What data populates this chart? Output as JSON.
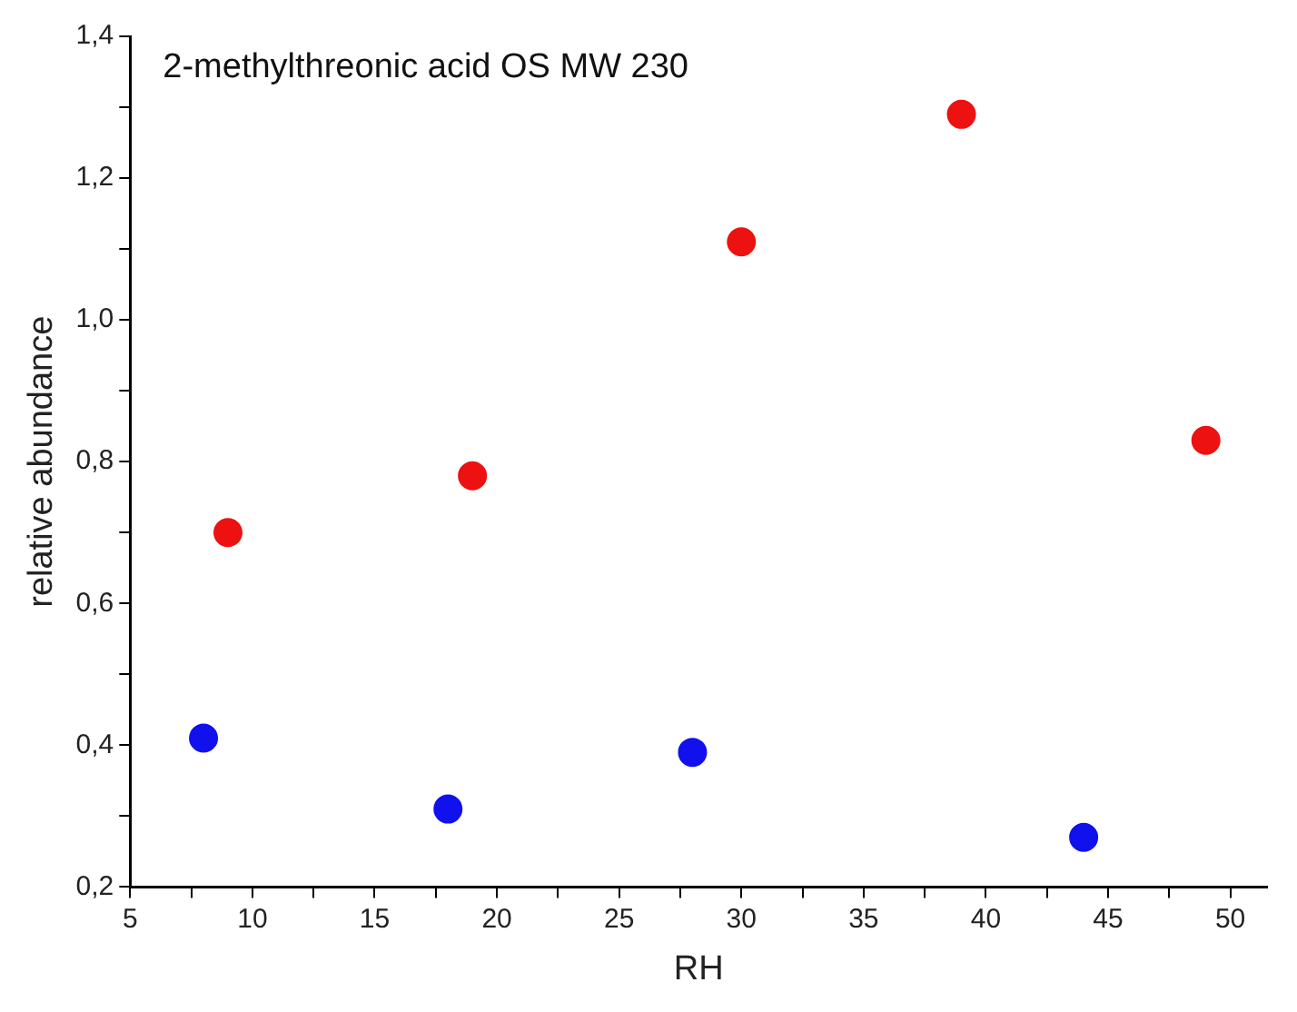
{
  "chart_data": {
    "type": "scatter",
    "title": "2-methylthreonic acid OS MW 230",
    "xlabel": "RH",
    "ylabel": "relative abundance",
    "series": [
      {
        "color": "#ee1111",
        "x": [
          9,
          19,
          30,
          39,
          49
        ],
        "values": [
          0.7,
          0.78,
          1.11,
          1.29,
          0.83
        ]
      },
      {
        "color": "#1111ee",
        "x": [
          8,
          18,
          28,
          44
        ],
        "values": [
          0.41,
          0.31,
          0.39,
          0.27
        ]
      }
    ],
    "xlim": [
      5,
      51.5
    ],
    "ylim": [
      0.2,
      1.4
    ],
    "xticks": [
      5,
      {
        "value": 7.5,
        "label": null
      },
      10,
      {
        "value": 12.5,
        "label": null
      },
      15,
      {
        "value": 17.5,
        "label": null
      },
      20,
      {
        "value": 22.5,
        "label": null
      },
      25,
      {
        "value": 27.5,
        "label": null
      },
      30,
      {
        "value": 32.5,
        "label": null
      },
      35,
      {
        "value": 37.5,
        "label": null
      },
      40,
      {
        "value": 42.5,
        "label": null
      },
      45,
      {
        "value": 47.5,
        "label": null
      },
      50
    ],
    "yticks": [
      {
        "value": 0.2,
        "label": "0,2"
      },
      {
        "value": 0.3,
        "label": null
      },
      {
        "value": 0.4,
        "label": "0,4"
      },
      {
        "value": 0.5,
        "label": null
      },
      {
        "value": 0.6,
        "label": "0,6"
      },
      {
        "value": 0.7,
        "label": null
      },
      {
        "value": 0.8,
        "label": "0,8"
      },
      {
        "value": 0.9,
        "label": null
      },
      {
        "value": 1.0,
        "label": "1,0"
      },
      {
        "value": 1.1,
        "label": null
      },
      {
        "value": 1.2,
        "label": "1,2"
      },
      {
        "value": 1.3,
        "label": null
      },
      {
        "value": 1.4,
        "label": "1,4"
      }
    ],
    "marker": "circle",
    "grid": false,
    "legend": false
  }
}
